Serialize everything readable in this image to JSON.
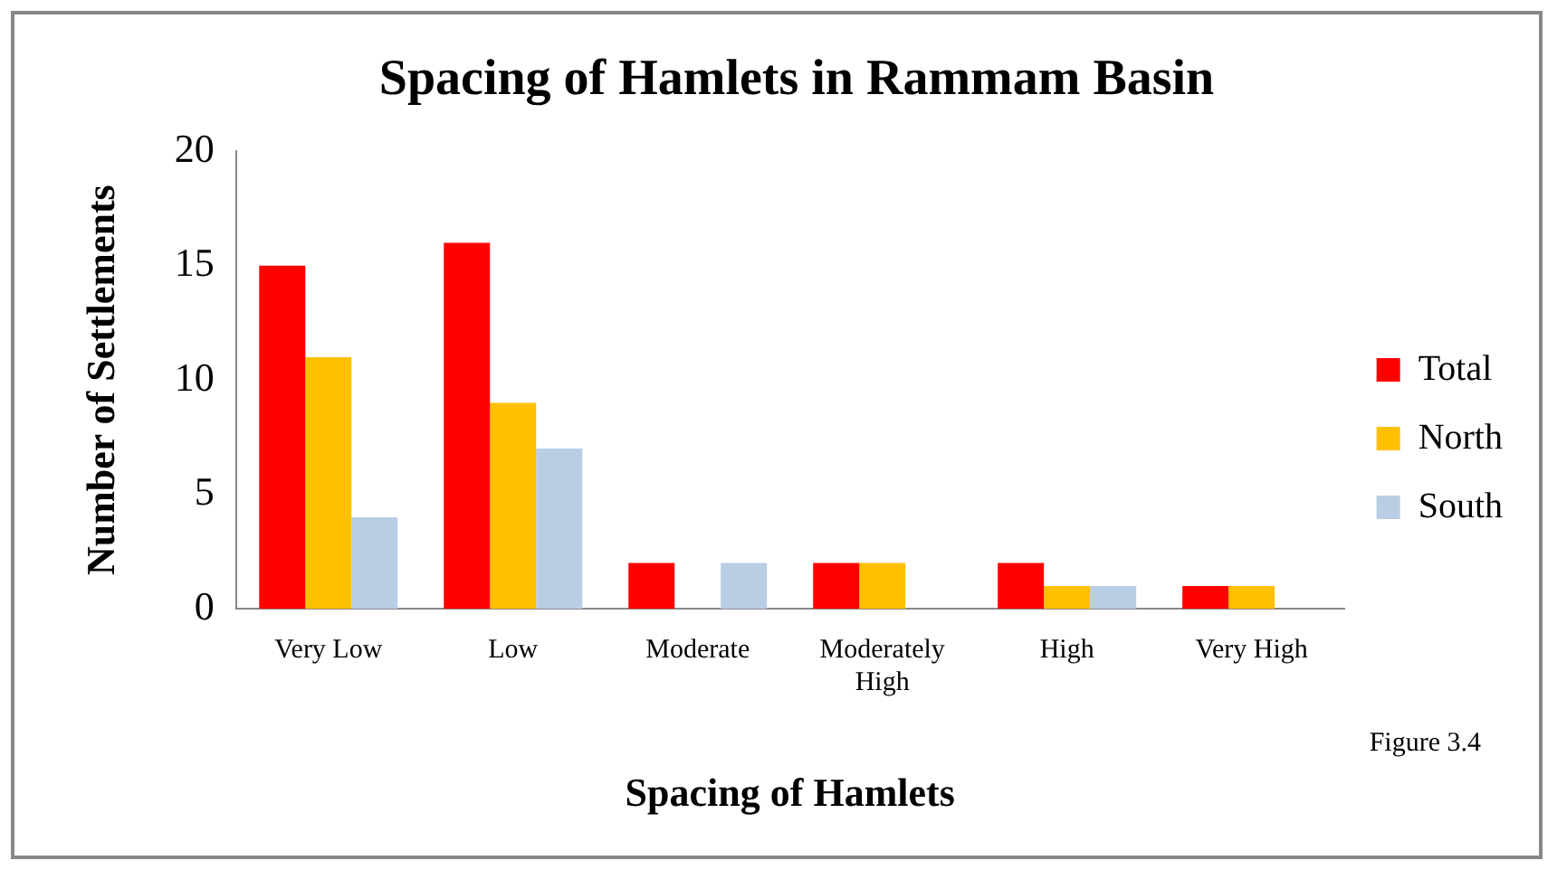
{
  "chart_data": {
    "type": "bar",
    "title": "Spacing of Hamlets in Rammam Basin",
    "xlabel": "Spacing of Hamlets",
    "ylabel": "Number of Settlements",
    "categories": [
      "Very Low",
      "Low",
      "Moderate",
      "Moderately High",
      "High",
      "Very High"
    ],
    "series": [
      {
        "name": "Total",
        "color": "#ff0000",
        "values": [
          15,
          16,
          2,
          2,
          2,
          1
        ]
      },
      {
        "name": "North",
        "color": "#ffc000",
        "values": [
          11,
          9,
          0,
          2,
          1,
          1
        ]
      },
      {
        "name": "South",
        "color": "#b9cde5",
        "values": [
          4,
          7,
          2,
          0,
          1,
          0
        ]
      }
    ],
    "ylim": [
      0,
      20
    ],
    "yticks": [
      0,
      5,
      10,
      15,
      20
    ],
    "grid": false,
    "legend": "right",
    "annotations": [
      "Figure 3.4"
    ]
  }
}
